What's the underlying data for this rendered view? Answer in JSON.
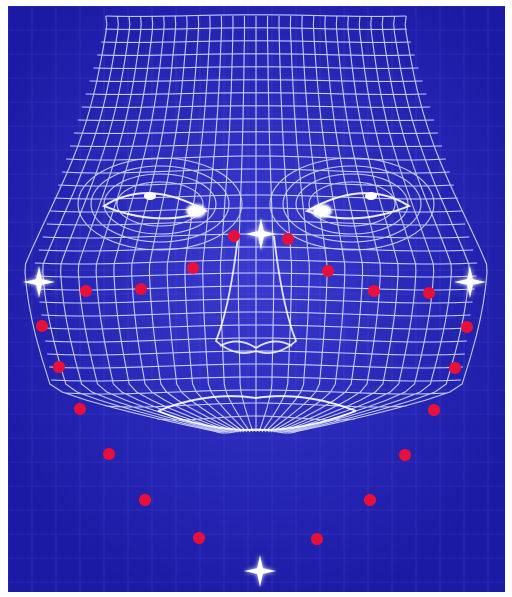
{
  "image": {
    "subject": "face-mesh-landmarks",
    "background_color": "#2222b0",
    "mesh_color": "#dfe6ff",
    "landmark_color": "#e8103a",
    "highlight_color": "#ffffff"
  }
}
